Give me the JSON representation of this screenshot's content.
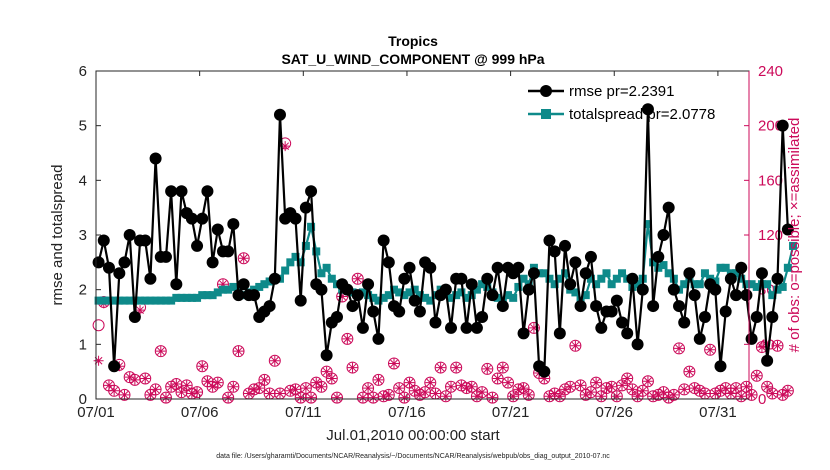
{
  "chart_data": {
    "type": "line",
    "title": "Tropics",
    "subtitle": "SAT_U_WIND_COMPONENT @ 999 hPa",
    "xlabel": "Jul.01,2010 00:00:00 start",
    "ylabel": "rmse and totalspread",
    "ylabel_right": "# of obs: o=possible; ×=assimilated",
    "x_ticks": [
      "07/01",
      "07/06",
      "07/11",
      "07/16",
      "07/21",
      "07/26",
      "07/31"
    ],
    "y_ticks": [
      "0",
      "1",
      "2",
      "3",
      "4",
      "5",
      "6"
    ],
    "y_ticks_right": [
      "0",
      "40",
      "80",
      "120",
      "160",
      "200",
      "240"
    ],
    "ylim": [
      0,
      6
    ],
    "ylim_right": [
      0,
      240
    ],
    "xlim": [
      0,
      31.5
    ],
    "legend_position": "top-right",
    "footnote": "data file: /Users/gharamti/Documents/NCAR/Reanalysis/~/Documents/NCAR/Reanalysis/webpub/obs_diag_output_2010-07.nc",
    "colors": {
      "rmse": "#000000",
      "spread": "#0e8a8a",
      "obs": "#cc0a5a"
    },
    "series": [
      {
        "name": "rmse",
        "legend": "rmse pr=2.2391",
        "values": [
          2.5,
          2.9,
          2.4,
          0.6,
          2.3,
          2.5,
          3.0,
          1.5,
          2.9,
          2.9,
          2.2,
          4.4,
          2.6,
          2.6,
          3.8,
          2.1,
          3.8,
          3.4,
          3.3,
          2.8,
          3.3,
          3.8,
          2.5,
          3.1,
          2.7,
          2.7,
          3.2,
          1.9,
          2.1,
          1.9,
          1.9,
          1.5,
          1.6,
          1.7,
          2.2,
          5.2,
          3.3,
          3.4,
          3.3,
          1.8,
          3.5,
          3.8,
          2.1,
          2.0,
          0.8,
          1.4,
          1.5,
          2.1,
          2.0,
          1.7,
          1.9,
          1.3,
          2.1,
          1.6,
          1.1,
          2.9,
          2.5,
          1.7,
          1.6,
          2.2,
          2.4,
          1.8,
          1.6,
          2.5,
          2.4,
          1.4,
          1.9,
          2.0,
          1.3,
          2.2,
          2.2,
          1.3,
          2.1,
          1.3,
          1.5,
          2.2,
          1.9,
          2.4,
          1.7,
          2.4,
          2.3,
          2.4,
          1.2,
          2.0,
          2.3,
          0.6,
          0.5,
          2.9,
          2.7,
          1.2,
          2.8,
          2.1,
          2.5,
          1.7,
          2.3,
          2.6,
          1.7,
          1.3,
          1.6,
          1.6,
          1.8,
          1.4,
          1.2,
          2.2,
          1.0,
          2.0,
          5.3,
          1.7,
          2.6,
          3.0,
          3.5,
          2.0,
          1.7,
          1.4,
          2.3,
          1.9,
          1.1,
          1.5,
          2.1,
          2.0,
          0.6,
          1.6,
          2.2,
          1.9,
          2.4,
          1.9,
          1.1,
          1.5,
          2.3,
          0.7,
          1.5,
          2.2,
          5.0,
          3.1
        ]
      },
      {
        "name": "totalspread",
        "legend": "totalspread pr=2.0778",
        "values": [
          1.8,
          1.8,
          1.8,
          1.8,
          1.8,
          1.8,
          1.8,
          1.8,
          1.8,
          1.8,
          1.8,
          1.8,
          1.8,
          1.8,
          1.8,
          1.85,
          1.85,
          1.85,
          1.85,
          1.85,
          1.9,
          1.9,
          1.9,
          1.95,
          2.0,
          2.0,
          2.05,
          2.0,
          1.9,
          1.95,
          2.0,
          2.05,
          2.1,
          2.15,
          2.2,
          2.2,
          2.35,
          2.5,
          2.6,
          2.5,
          2.8,
          3.15,
          2.7,
          2.3,
          2.4,
          2.2,
          2.1,
          2.0,
          2.0,
          1.95,
          1.9,
          1.95,
          1.9,
          1.85,
          1.8,
          1.85,
          1.9,
          2.0,
          1.95,
          1.9,
          1.95,
          2.0,
          1.9,
          1.85,
          1.8,
          1.9,
          2.0,
          1.95,
          1.85,
          1.9,
          1.95,
          1.85,
          1.9,
          2.0,
          2.1,
          2.05,
          1.95,
          1.85,
          1.8,
          1.9,
          1.85,
          2.05,
          2.2,
          2.1,
          2.4,
          2.3,
          2.3,
          2.2,
          2.1,
          2.2,
          2.3,
          2.0,
          1.95,
          1.8,
          1.9,
          2.2,
          2.1,
          2.2,
          2.3,
          2.1,
          2.2,
          2.3,
          2.2,
          2.05,
          2.1,
          2.2,
          3.2,
          2.5,
          2.4,
          2.45,
          2.3,
          2.2,
          2.0,
          2.1,
          2.2,
          2.1,
          2.1,
          2.3,
          2.2,
          2.15,
          2.4,
          2.4,
          2.3,
          2.3,
          2.2,
          2.1,
          2.1,
          2.05,
          2.1,
          2.1,
          1.9,
          2.0,
          2.05,
          2.4,
          2.8
        ]
      },
      {
        "name": "obs_possible",
        "axis": "right",
        "marker": "o",
        "values": [
          54,
          71,
          10,
          6,
          25,
          3,
          16,
          14,
          67,
          15,
          3,
          7,
          35,
          1,
          9,
          11,
          5,
          10,
          4,
          5,
          24,
          13,
          9,
          12,
          84,
          1,
          9,
          35,
          103,
          4,
          7,
          8,
          14,
          4,
          28,
          4,
          187,
          6,
          7,
          1,
          8,
          1,
          12,
          9,
          20,
          15,
          1,
          75,
          44,
          23,
          88,
          1,
          8,
          1,
          14,
          2,
          3,
          26,
          8,
          1,
          12,
          6,
          3,
          5,
          12,
          4,
          23,
          2,
          9,
          23,
          10,
          8,
          9,
          2,
          5,
          22,
          1,
          15,
          23,
          12,
          2,
          7,
          8,
          3,
          52,
          19,
          15,
          2,
          4,
          2,
          7,
          9,
          39,
          10,
          3,
          5,
          12,
          2,
          8,
          9,
          2,
          10,
          15,
          7,
          2,
          6,
          13,
          2,
          3,
          5,
          1,
          3,
          37,
          7,
          20,
          8,
          6,
          4,
          36,
          4,
          6,
          8,
          4,
          8,
          2,
          9,
          3,
          17,
          38,
          9,
          4,
          39,
          3,
          6
        ]
      },
      {
        "name": "obs_assimilated",
        "axis": "right",
        "marker": "x",
        "values": [
          28,
          70,
          10,
          6,
          24,
          3,
          16,
          14,
          65,
          15,
          3,
          7,
          35,
          1,
          9,
          11,
          5,
          10,
          4,
          5,
          24,
          13,
          9,
          12,
          84,
          1,
          9,
          35,
          103,
          4,
          7,
          8,
          14,
          4,
          28,
          4,
          185,
          6,
          7,
          1,
          8,
          1,
          12,
          9,
          20,
          15,
          1,
          75,
          44,
          23,
          88,
          1,
          8,
          1,
          14,
          2,
          3,
          26,
          8,
          1,
          12,
          6,
          3,
          5,
          12,
          4,
          23,
          2,
          9,
          23,
          10,
          8,
          9,
          2,
          5,
          22,
          1,
          15,
          23,
          12,
          2,
          7,
          8,
          3,
          52,
          19,
          15,
          2,
          4,
          2,
          7,
          9,
          39,
          10,
          3,
          5,
          12,
          2,
          8,
          9,
          2,
          10,
          15,
          7,
          2,
          6,
          13,
          2,
          3,
          5,
          1,
          3,
          37,
          7,
          20,
          8,
          6,
          4,
          36,
          4,
          6,
          8,
          4,
          8,
          2,
          9,
          3,
          17,
          38,
          9,
          4,
          39,
          3,
          6
        ]
      }
    ]
  }
}
